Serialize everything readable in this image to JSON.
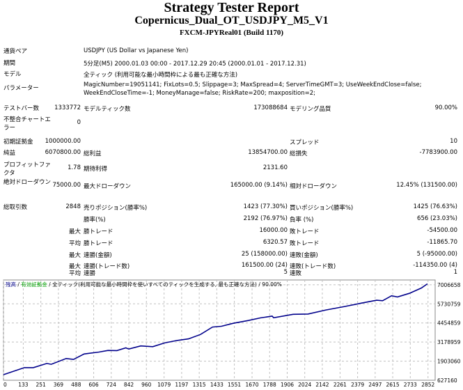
{
  "header": {
    "title": "Strategy Tester Report",
    "expert": "Copernicus_Dual_OT_USDJPY_M5_V1",
    "server": "FXCM-JPYReal01 (Build 1170)"
  },
  "info": {
    "symbol_label": "通貨ペア",
    "symbol": "USDJPY (US Dollar vs Japanese Yen)",
    "period_label": "期間",
    "period": "5分足(M5) 2000.01.03 00:00 - 2017.12.29 20:45 (2000.01.01 - 2017.12.31)",
    "model_label": "モデル",
    "model": "全ティック (利用可能な最小時間枠による最も正確な方法)",
    "params_label": "パラメーター",
    "params": "MagicNumber=19051141; FixLots=0.5; Slippage=3; MaxSpread=4; ServerTimeGMT=3; UseWeekEndClose=false; WeekEndCloseTime=-1; MoneyManage=false; RiskRate=200; maxposition=2;",
    "bars_label": "テストバー数",
    "bars": "1333772",
    "ticks_label": "モデルティック数",
    "ticks": "173088684",
    "quality_label": "モデリング品質",
    "quality": "90.00%",
    "mismatch_label": "不整合チャートエラー",
    "mismatch": "0"
  },
  "stats": {
    "deposit_label": "初期証拠金",
    "deposit": "1000000.00",
    "spread_label": "スプレッド",
    "spread": "10",
    "net_label": "純益",
    "net": "6070800.00",
    "gross_profit_label": "総利益",
    "gross_profit": "13854700.00",
    "gross_loss_label": "総損失",
    "gross_loss": "-7783900.00",
    "pf_label": "プロフィットファクタ",
    "pf": "1.78",
    "expected_label": "期待利得",
    "expected": "2131.60",
    "abs_dd_label": "絶対ドローダウン",
    "abs_dd": "75000.00",
    "max_dd_label": "最大ドローダウン",
    "max_dd": "165000.00 (9.14%)",
    "rel_dd_label": "相対ドローダウン",
    "rel_dd": "12.45% (131500.00)",
    "trades_label": "総取引数",
    "trades": "2848",
    "short_label": "売りポジション(勝率%)",
    "short": "1423 (77.30%)",
    "long_label": "買いポジション(勝率%)",
    "long": "1425 (76.63%)",
    "win_label": "勝率(%)",
    "win": "2192 (76.97%)",
    "loss_label": "負率 (%)",
    "loss": "656 (23.03%)",
    "max_label": "最大",
    "avg_label": "平均",
    "lg_win_label": "勝トレード",
    "lg_win": "16000.00",
    "lg_loss_label": "敗トレード",
    "lg_loss": "-54500.00",
    "av_win_label": "勝トレード",
    "av_win": "6320.57",
    "av_loss_label": "敗トレード",
    "av_loss": "-11865.70",
    "cons_win_label": "連勝(金額)",
    "cons_win": "25 (158000.00)",
    "cons_loss_label": "連敗(金額)",
    "cons_loss": "5 (-95000.00)",
    "cons_win2_label": "連勝(トレード数)",
    "cons_win2": "161500.00 (24)",
    "cons_loss2_label": "連敗(トレード数)",
    "cons_loss2": "-114350.00 (4)",
    "avg_cons_win_label": "連勝",
    "avg_cons_win": "5",
    "avg_cons_loss_label": "連敗",
    "avg_cons_loss": "1"
  },
  "chart_data": {
    "type": "line",
    "legend": {
      "balance": "残高",
      "equity": "有効証拠金",
      "model": "全ティック(利用可能な最小時間枠を使いすべてのティックを生成する, 最も正確な方法)",
      "quality": "90.00%"
    },
    "colors": {
      "balance": "#00008b",
      "equity": "#00a000",
      "grid": "#c0c0c0"
    },
    "grid": true,
    "x_ticks": [
      0,
      133,
      251,
      369,
      488,
      606,
      724,
      842,
      960,
      1079,
      1197,
      1315,
      1433,
      1551,
      1670,
      1788,
      1906,
      2024,
      2142,
      2261,
      2379,
      2497,
      2615,
      2733,
      2852
    ],
    "y_ticks": [
      627160,
      1903060,
      3178959,
      4454859,
      5730759,
      7006658
    ],
    "ylim": [
      627160,
      7325000
    ],
    "xlim": [
      0,
      2900
    ],
    "series": [
      {
        "name": "残高",
        "x": [
          0,
          140,
          200,
          291,
          321,
          421,
          471,
          541,
          642,
          702,
          762,
          822,
          842,
          922,
          1003,
          1083,
          1163,
          1243,
          1324,
          1404,
          1464,
          1544,
          1645,
          1725,
          1805,
          1815,
          1946,
          2046,
          2166,
          2286,
          2406,
          2507,
          2547,
          2607,
          2647,
          2727,
          2808,
          2848
        ],
        "y": [
          1000000,
          1470000,
          1470000,
          1750000,
          1690000,
          2080000,
          2020000,
          2380000,
          2510000,
          2620000,
          2610000,
          2790000,
          2710000,
          2920000,
          2870000,
          3120000,
          3280000,
          3390000,
          3690000,
          4180000,
          4230000,
          4430000,
          4620000,
          4790000,
          4910000,
          4800000,
          5030000,
          5050000,
          5320000,
          5540000,
          5780000,
          5970000,
          5940000,
          6270000,
          6190000,
          6430000,
          6790000,
          7070800
        ]
      }
    ]
  }
}
